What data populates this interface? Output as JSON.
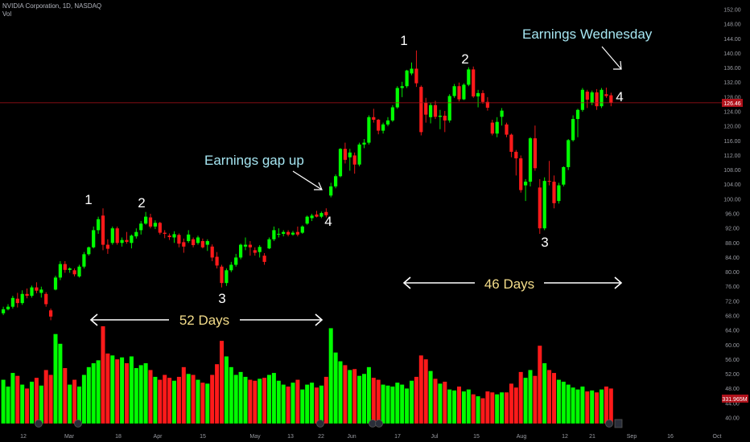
{
  "header": {
    "symbol_line": "NVIDIA Corporation, 1D, NASDAQ",
    "volume_label": "Vol"
  },
  "colors": {
    "up": "#00ff00",
    "down": "#ff1a1a",
    "price_line": "#b0121b",
    "text_white": "#ffffff",
    "text_cyan": "#a6e6f2",
    "text_gold": "#f4dd8a"
  },
  "chart_data": {
    "type": "candlestick",
    "y_axis": {
      "ticks": [
        40.0,
        44.0,
        48.0,
        52.0,
        56.0,
        60.0,
        64.0,
        68.0,
        72.0,
        76.0,
        80.0,
        84.0,
        88.0,
        92.0,
        96.0,
        100.0,
        104.0,
        108.0,
        112.0,
        116.0,
        120.0,
        124.0,
        128.0,
        132.0,
        136.0,
        140.0,
        144.0,
        148.0,
        152.0
      ],
      "range": [
        38,
        153
      ]
    },
    "x_axis": {
      "ticks": [
        "12",
        "Mar",
        "18",
        "Apr",
        "15",
        "May",
        "13",
        "22",
        "Jun",
        "17",
        "Jul",
        "15",
        "Aug",
        "12",
        "21",
        "Sep",
        "16",
        "Oct"
      ]
    },
    "current_price": {
      "value": 126.46,
      "label": "126.46"
    },
    "volume_badge": {
      "label": "331.965M"
    },
    "candles": [
      {
        "o": 68.7,
        "h": 70.5,
        "l": 68.2,
        "c": 69.8,
        "v": 0.45
      },
      {
        "o": 69.8,
        "h": 71.2,
        "l": 69.5,
        "c": 70.5,
        "v": 0.38
      },
      {
        "o": 70.5,
        "h": 73.5,
        "l": 70.0,
        "c": 72.9,
        "v": 0.52
      },
      {
        "o": 72.7,
        "h": 74.3,
        "l": 70.3,
        "c": 71.5,
        "v": 0.49
      },
      {
        "o": 71.5,
        "h": 75.0,
        "l": 71.0,
        "c": 74.0,
        "v": 0.4
      },
      {
        "o": 74.0,
        "h": 75.5,
        "l": 72.8,
        "c": 73.5,
        "v": 0.36
      },
      {
        "o": 73.5,
        "h": 76.3,
        "l": 73.0,
        "c": 75.8,
        "v": 0.43
      },
      {
        "o": 75.8,
        "h": 77.2,
        "l": 74.2,
        "c": 74.9,
        "v": 0.47
      },
      {
        "o": 74.3,
        "h": 76.0,
        "l": 73.0,
        "c": 75.2,
        "v": 0.39
      },
      {
        "o": 74.0,
        "h": 74.5,
        "l": 70.5,
        "c": 71.2,
        "v": 0.55
      },
      {
        "o": 69.5,
        "h": 70.0,
        "l": 66.8,
        "c": 67.8,
        "v": 0.5
      },
      {
        "o": 75.2,
        "h": 79.0,
        "l": 75.0,
        "c": 78.5,
        "v": 0.92
      },
      {
        "o": 78.5,
        "h": 83.0,
        "l": 77.8,
        "c": 82.2,
        "v": 0.82
      },
      {
        "o": 82.2,
        "h": 83.0,
        "l": 79.8,
        "c": 80.6,
        "v": 0.57
      },
      {
        "o": 80.6,
        "h": 81.3,
        "l": 79.8,
        "c": 81.0,
        "v": 0.4
      },
      {
        "o": 80.5,
        "h": 81.0,
        "l": 78.8,
        "c": 79.4,
        "v": 0.45
      },
      {
        "o": 78.8,
        "h": 82.0,
        "l": 78.5,
        "c": 81.5,
        "v": 0.38
      },
      {
        "o": 81.5,
        "h": 85.5,
        "l": 81.0,
        "c": 84.9,
        "v": 0.5
      },
      {
        "o": 84.9,
        "h": 87.0,
        "l": 84.5,
        "c": 86.8,
        "v": 0.58
      },
      {
        "o": 86.8,
        "h": 92.5,
        "l": 86.5,
        "c": 91.5,
        "v": 0.62
      },
      {
        "o": 91.5,
        "h": 95.2,
        "l": 90.5,
        "c": 94.5,
        "v": 0.65
      },
      {
        "o": 95.5,
        "h": 97.5,
        "l": 86.0,
        "c": 87.5,
        "v": 1.0
      },
      {
        "o": 87.5,
        "h": 89.0,
        "l": 85.0,
        "c": 86.4,
        "v": 0.72
      },
      {
        "o": 88.0,
        "h": 92.5,
        "l": 87.5,
        "c": 92.0,
        "v": 0.7
      },
      {
        "o": 92.0,
        "h": 92.5,
        "l": 87.5,
        "c": 88.0,
        "v": 0.66
      },
      {
        "o": 88.0,
        "h": 89.5,
        "l": 87.0,
        "c": 88.8,
        "v": 0.68
      },
      {
        "o": 88.8,
        "h": 91.0,
        "l": 87.8,
        "c": 88.3,
        "v": 0.62
      },
      {
        "o": 88.0,
        "h": 90.3,
        "l": 86.5,
        "c": 90.0,
        "v": 0.69
      },
      {
        "o": 89.8,
        "h": 92.0,
        "l": 89.2,
        "c": 91.0,
        "v": 0.57
      },
      {
        "o": 91.5,
        "h": 94.0,
        "l": 90.3,
        "c": 93.3,
        "v": 0.6
      },
      {
        "o": 93.3,
        "h": 96.5,
        "l": 93.0,
        "c": 95.2,
        "v": 0.62
      },
      {
        "o": 95.0,
        "h": 96.0,
        "l": 92.0,
        "c": 92.5,
        "v": 0.55
      },
      {
        "o": 92.5,
        "h": 94.2,
        "l": 91.8,
        "c": 93.5,
        "v": 0.48
      },
      {
        "o": 93.5,
        "h": 93.8,
        "l": 90.3,
        "c": 90.8,
        "v": 0.45
      },
      {
        "o": 90.8,
        "h": 91.5,
        "l": 89.3,
        "c": 90.5,
        "v": 0.5
      },
      {
        "o": 90.0,
        "h": 90.6,
        "l": 88.8,
        "c": 89.6,
        "v": 0.47
      },
      {
        "o": 89.5,
        "h": 91.2,
        "l": 88.0,
        "c": 90.4,
        "v": 0.44
      },
      {
        "o": 90.2,
        "h": 90.6,
        "l": 86.8,
        "c": 87.8,
        "v": 0.48
      },
      {
        "o": 88.2,
        "h": 89.2,
        "l": 85.3,
        "c": 87.0,
        "v": 0.58
      },
      {
        "o": 88.5,
        "h": 91.5,
        "l": 88.0,
        "c": 90.3,
        "v": 0.51
      },
      {
        "o": 89.0,
        "h": 89.5,
        "l": 86.8,
        "c": 87.4,
        "v": 0.5
      },
      {
        "o": 88.0,
        "h": 90.0,
        "l": 87.5,
        "c": 89.5,
        "v": 0.45
      },
      {
        "o": 88.5,
        "h": 89.2,
        "l": 86.5,
        "c": 86.8,
        "v": 0.42
      },
      {
        "o": 87.5,
        "h": 89.0,
        "l": 85.8,
        "c": 88.5,
        "v": 0.41
      },
      {
        "o": 87.0,
        "h": 87.6,
        "l": 83.0,
        "c": 84.0,
        "v": 0.5
      },
      {
        "o": 84.2,
        "h": 85.5,
        "l": 81.0,
        "c": 81.8,
        "v": 0.61
      },
      {
        "o": 81.5,
        "h": 82.0,
        "l": 75.8,
        "c": 77.0,
        "v": 0.85
      },
      {
        "o": 77.0,
        "h": 81.0,
        "l": 76.2,
        "c": 80.5,
        "v": 0.69
      },
      {
        "o": 80.5,
        "h": 82.8,
        "l": 80.0,
        "c": 82.0,
        "v": 0.58
      },
      {
        "o": 82.0,
        "h": 85.0,
        "l": 81.5,
        "c": 84.0,
        "v": 0.5
      },
      {
        "o": 84.0,
        "h": 87.8,
        "l": 83.5,
        "c": 87.5,
        "v": 0.53
      },
      {
        "o": 87.0,
        "h": 89.5,
        "l": 86.0,
        "c": 87.5,
        "v": 0.48
      },
      {
        "o": 87.5,
        "h": 88.5,
        "l": 84.5,
        "c": 86.8,
        "v": 0.45
      },
      {
        "o": 86.0,
        "h": 86.8,
        "l": 84.5,
        "c": 85.3,
        "v": 0.44
      },
      {
        "o": 85.5,
        "h": 87.4,
        "l": 84.0,
        "c": 86.9,
        "v": 0.46
      },
      {
        "o": 84.5,
        "h": 85.2,
        "l": 82.0,
        "c": 82.8,
        "v": 0.47
      },
      {
        "o": 86.5,
        "h": 89.5,
        "l": 86.3,
        "c": 89.0,
        "v": 0.5
      },
      {
        "o": 89.0,
        "h": 92.5,
        "l": 88.5,
        "c": 91.5,
        "v": 0.52
      },
      {
        "o": 90.3,
        "h": 92.0,
        "l": 89.5,
        "c": 90.5,
        "v": 0.44
      },
      {
        "o": 90.5,
        "h": 91.5,
        "l": 89.8,
        "c": 91.0,
        "v": 0.4
      },
      {
        "o": 91.0,
        "h": 91.5,
        "l": 89.8,
        "c": 90.3,
        "v": 0.38
      },
      {
        "o": 90.3,
        "h": 91.3,
        "l": 90.0,
        "c": 90.8,
        "v": 0.42
      },
      {
        "o": 91.0,
        "h": 92.5,
        "l": 89.8,
        "c": 90.3,
        "v": 0.45
      },
      {
        "o": 90.8,
        "h": 92.8,
        "l": 90.5,
        "c": 92.5,
        "v": 0.35
      },
      {
        "o": 93.3,
        "h": 95.5,
        "l": 93.0,
        "c": 95.2,
        "v": 0.4
      },
      {
        "o": 94.8,
        "h": 96.0,
        "l": 94.0,
        "c": 95.5,
        "v": 0.42
      },
      {
        "o": 95.8,
        "h": 96.8,
        "l": 95.0,
        "c": 95.2,
        "v": 0.37
      },
      {
        "o": 95.2,
        "h": 96.6,
        "l": 94.8,
        "c": 96.2,
        "v": 0.39
      },
      {
        "o": 96.5,
        "h": 97.5,
        "l": 95.0,
        "c": 95.6,
        "v": 0.48
      },
      {
        "o": 101.0,
        "h": 104.5,
        "l": 100.5,
        "c": 103.5,
        "v": 0.98
      },
      {
        "o": 103.5,
        "h": 106.8,
        "l": 103.0,
        "c": 106.3,
        "v": 0.73
      },
      {
        "o": 106.3,
        "h": 114.0,
        "l": 106.0,
        "c": 113.8,
        "v": 0.64
      },
      {
        "o": 113.8,
        "h": 115.5,
        "l": 109.8,
        "c": 110.8,
        "v": 0.6
      },
      {
        "o": 111.5,
        "h": 113.8,
        "l": 107.8,
        "c": 112.8,
        "v": 0.55
      },
      {
        "o": 112.0,
        "h": 112.8,
        "l": 107.0,
        "c": 109.5,
        "v": 0.56
      },
      {
        "o": 109.5,
        "h": 115.5,
        "l": 109.0,
        "c": 115.0,
        "v": 0.49
      },
      {
        "o": 115.0,
        "h": 116.5,
        "l": 114.0,
        "c": 115.5,
        "v": 0.51
      },
      {
        "o": 115.5,
        "h": 123.0,
        "l": 115.0,
        "c": 122.5,
        "v": 0.58
      },
      {
        "o": 122.5,
        "h": 124.8,
        "l": 121.0,
        "c": 121.8,
        "v": 0.47
      },
      {
        "o": 121.8,
        "h": 122.0,
        "l": 117.8,
        "c": 118.8,
        "v": 0.45
      },
      {
        "o": 118.8,
        "h": 121.0,
        "l": 118.0,
        "c": 120.5,
        "v": 0.4
      },
      {
        "o": 120.5,
        "h": 122.5,
        "l": 120.0,
        "c": 121.6,
        "v": 0.39
      },
      {
        "o": 121.6,
        "h": 125.8,
        "l": 121.2,
        "c": 125.2,
        "v": 0.38
      },
      {
        "o": 125.2,
        "h": 131.0,
        "l": 124.8,
        "c": 130.5,
        "v": 0.42
      },
      {
        "o": 130.5,
        "h": 132.2,
        "l": 128.0,
        "c": 131.0,
        "v": 0.4
      },
      {
        "o": 131.0,
        "h": 135.5,
        "l": 130.5,
        "c": 135.3,
        "v": 0.36
      },
      {
        "o": 134.5,
        "h": 137.5,
        "l": 134.0,
        "c": 135.8,
        "v": 0.44
      },
      {
        "o": 135.8,
        "h": 140.8,
        "l": 130.8,
        "c": 131.8,
        "v": 0.48
      },
      {
        "o": 130.8,
        "h": 131.2,
        "l": 117.5,
        "c": 118.4,
        "v": 0.7
      },
      {
        "o": 126.5,
        "h": 127.8,
        "l": 121.0,
        "c": 123.2,
        "v": 0.66
      },
      {
        "o": 122.5,
        "h": 126.5,
        "l": 120.8,
        "c": 125.8,
        "v": 0.54
      },
      {
        "o": 125.8,
        "h": 127.0,
        "l": 122.0,
        "c": 122.6,
        "v": 0.46
      },
      {
        "o": 122.6,
        "h": 124.5,
        "l": 119.2,
        "c": 122.9,
        "v": 0.41
      },
      {
        "o": 122.9,
        "h": 124.2,
        "l": 118.4,
        "c": 121.6,
        "v": 0.43
      },
      {
        "o": 121.6,
        "h": 128.8,
        "l": 121.0,
        "c": 128.3,
        "v": 0.35
      },
      {
        "o": 128.3,
        "h": 131.6,
        "l": 127.8,
        "c": 131.0,
        "v": 0.34
      },
      {
        "o": 131.0,
        "h": 132.0,
        "l": 126.8,
        "c": 127.4,
        "v": 0.38
      },
      {
        "o": 127.4,
        "h": 131.8,
        "l": 127.2,
        "c": 131.4,
        "v": 0.33
      },
      {
        "o": 131.4,
        "h": 136.2,
        "l": 131.0,
        "c": 135.6,
        "v": 0.35
      },
      {
        "o": 135.6,
        "h": 136.4,
        "l": 127.8,
        "c": 128.2,
        "v": 0.3
      },
      {
        "o": 128.2,
        "h": 130.0,
        "l": 125.2,
        "c": 129.1,
        "v": 0.28
      },
      {
        "o": 129.1,
        "h": 129.9,
        "l": 126.2,
        "c": 126.7,
        "v": 0.26
      },
      {
        "o": 126.7,
        "h": 128.0,
        "l": 124.3,
        "c": 125.1,
        "v": 0.33
      },
      {
        "o": 121.0,
        "h": 121.8,
        "l": 117.5,
        "c": 118.0,
        "v": 0.32
      },
      {
        "o": 118.0,
        "h": 122.5,
        "l": 117.0,
        "c": 121.2,
        "v": 0.3
      },
      {
        "o": 122.6,
        "h": 125.0,
        "l": 120.2,
        "c": 124.3,
        "v": 0.32
      },
      {
        "o": 120.5,
        "h": 121.0,
        "l": 117.0,
        "c": 117.7,
        "v": 0.32
      },
      {
        "o": 117.7,
        "h": 118.0,
        "l": 111.5,
        "c": 113.0,
        "v": 0.41
      },
      {
        "o": 113.0,
        "h": 113.5,
        "l": 106.5,
        "c": 111.2,
        "v": 0.37
      },
      {
        "o": 111.2,
        "h": 112.0,
        "l": 101.8,
        "c": 102.5,
        "v": 0.53
      },
      {
        "o": 103.8,
        "h": 105.5,
        "l": 99.5,
        "c": 104.8,
        "v": 0.47
      },
      {
        "o": 104.8,
        "h": 117.0,
        "l": 103.5,
        "c": 116.7,
        "v": 0.55
      },
      {
        "o": 116.7,
        "h": 120.2,
        "l": 107.8,
        "c": 108.5,
        "v": 0.49
      },
      {
        "o": 103.2,
        "h": 105.5,
        "l": 90.5,
        "c": 92.0,
        "v": 0.8
      },
      {
        "o": 92.0,
        "h": 106.0,
        "l": 91.5,
        "c": 105.0,
        "v": 0.62
      },
      {
        "o": 105.0,
        "h": 110.5,
        "l": 103.8,
        "c": 104.8,
        "v": 0.55
      },
      {
        "o": 104.8,
        "h": 106.5,
        "l": 97.5,
        "c": 98.9,
        "v": 0.52
      },
      {
        "o": 99.5,
        "h": 104.5,
        "l": 98.8,
        "c": 103.8,
        "v": 0.45
      },
      {
        "o": 104.0,
        "h": 109.0,
        "l": 103.5,
        "c": 108.8,
        "v": 0.43
      },
      {
        "o": 108.8,
        "h": 116.5,
        "l": 108.0,
        "c": 116.2,
        "v": 0.4
      },
      {
        "o": 116.2,
        "h": 123.0,
        "l": 115.8,
        "c": 122.0,
        "v": 0.37
      },
      {
        "o": 122.0,
        "h": 124.8,
        "l": 117.0,
        "c": 124.5,
        "v": 0.35
      },
      {
        "o": 124.5,
        "h": 130.5,
        "l": 124.0,
        "c": 130.0,
        "v": 0.38
      },
      {
        "o": 129.5,
        "h": 130.0,
        "l": 125.0,
        "c": 127.3,
        "v": 0.33
      },
      {
        "o": 126.5,
        "h": 129.8,
        "l": 125.8,
        "c": 129.3,
        "v": 0.34
      },
      {
        "o": 129.3,
        "h": 130.2,
        "l": 124.5,
        "c": 125.5,
        "v": 0.32
      },
      {
        "o": 125.5,
        "h": 130.5,
        "l": 125.0,
        "c": 130.0,
        "v": 0.35
      },
      {
        "o": 128.8,
        "h": 130.6,
        "l": 127.8,
        "c": 128.3,
        "v": 0.38
      },
      {
        "o": 128.5,
        "h": 129.2,
        "l": 125.5,
        "c": 126.46,
        "v": 0.36
      }
    ]
  },
  "annotations": {
    "wave1_peak1": "1",
    "wave1_peak2": "2",
    "wave1_low3": "3",
    "wave1_point4": "4",
    "wave2_peak1": "1",
    "wave2_peak2": "2",
    "wave2_low3": "3",
    "wave2_point4": "4",
    "earnings_gap": "Earnings gap up",
    "earnings_wed": "Earnings Wednesday",
    "range1_label": "52 Days",
    "range2_label": "46 Days"
  }
}
